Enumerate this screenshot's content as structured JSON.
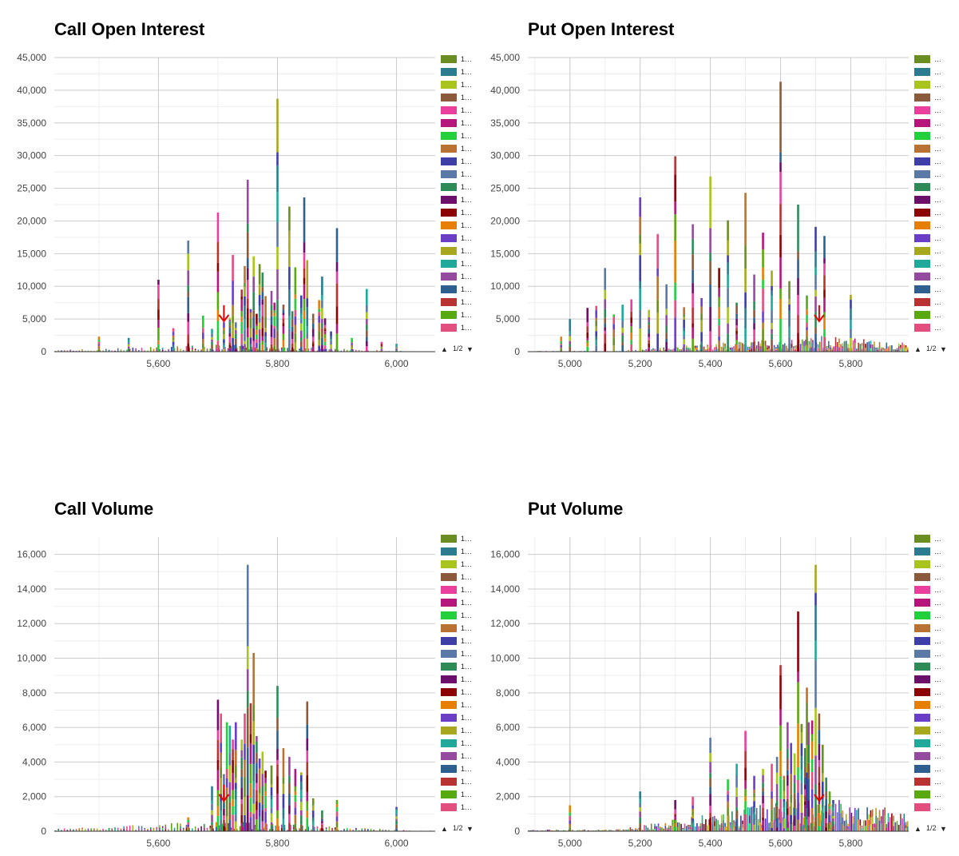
{
  "legend_colors": [
    "#6b8e23",
    "#2c7b8f",
    "#a9c41f",
    "#8b5a3c",
    "#e8409c",
    "#b5167a",
    "#23cf3b",
    "#b87333",
    "#3e3ea8",
    "#5b79a6",
    "#2e8b57",
    "#6b0f6b",
    "#8b0000",
    "#e67e00",
    "#6a3fc6",
    "#a8a820",
    "#20a89a",
    "#944b9e",
    "#2f5f8f",
    "#b83232",
    "#58a80f",
    "#e24e7e"
  ],
  "legend_label_call": "1…",
  "legend_label_put": "…",
  "pager": {
    "up": "▲",
    "text": "1/2",
    "down": "▼"
  },
  "panels": [
    {
      "key": "call-oi",
      "title": "Call Open Interest",
      "legend_label": "1…",
      "marker_x": 5710,
      "chart_data": {
        "type": "bar",
        "stacked": true,
        "title": "Call Open Interest",
        "xlim": [
          5425,
          6065
        ],
        "xticks": [
          5600,
          5800,
          6000
        ],
        "xtick_labels": [
          "5,600",
          "5,800",
          "6,000"
        ],
        "ylim": [
          0,
          45000
        ],
        "yticks": [
          0,
          5000,
          10000,
          15000,
          20000,
          25000,
          30000,
          35000,
          40000,
          45000
        ],
        "ytick_labels": [
          "0",
          "5,000",
          "10,000",
          "15,000",
          "20,000",
          "25,000",
          "30,000",
          "35,000",
          "40,000",
          "45,000"
        ],
        "strikes": [
          5500,
          5550,
          5600,
          5625,
          5650,
          5675,
          5690,
          5700,
          5710,
          5720,
          5725,
          5730,
          5740,
          5745,
          5750,
          5755,
          5760,
          5765,
          5770,
          5775,
          5780,
          5790,
          5795,
          5800,
          5810,
          5820,
          5825,
          5830,
          5840,
          5845,
          5850,
          5860,
          5870,
          5875,
          5880,
          5890,
          5900,
          5925,
          5950,
          5975,
          6000
        ],
        "totals": [
          2300,
          2100,
          11000,
          3600,
          17000,
          5500,
          3500,
          21300,
          4500,
          5200,
          14800,
          4500,
          9500,
          13100,
          26300,
          6500,
          14600,
          5800,
          13400,
          12100,
          8500,
          9300,
          7500,
          38700,
          7200,
          22200,
          6200,
          12900,
          8600,
          23600,
          14000,
          5800,
          7900,
          11500,
          5100,
          3100,
          18900,
          2100,
          9600,
          1500,
          1200
        ],
        "noise_seed": 3,
        "noise_max": 1100
      }
    },
    {
      "key": "put-oi",
      "title": "Put Open Interest",
      "legend_label": "…",
      "marker_x": 5710,
      "chart_data": {
        "type": "bar",
        "stacked": true,
        "title": "Put Open Interest",
        "xlim": [
          4880,
          5965
        ],
        "xticks": [
          5000,
          5200,
          5400,
          5600,
          5800
        ],
        "xtick_labels": [
          "5,000",
          "5,200",
          "5,400",
          "5,600",
          "5,800"
        ],
        "ylim": [
          0,
          45000
        ],
        "yticks": [
          0,
          5000,
          10000,
          15000,
          20000,
          25000,
          30000,
          35000,
          40000,
          45000
        ],
        "ytick_labels": [
          "0",
          "5,000",
          "10,000",
          "15,000",
          "20,000",
          "25,000",
          "30,000",
          "35,000",
          "40,000",
          "45,000"
        ],
        "strikes": [
          4975,
          5000,
          5050,
          5075,
          5100,
          5125,
          5150,
          5175,
          5200,
          5225,
          5250,
          5275,
          5300,
          5325,
          5350,
          5375,
          5400,
          5425,
          5450,
          5475,
          5500,
          5525,
          5550,
          5575,
          5600,
          5625,
          5650,
          5675,
          5700,
          5725,
          5800
        ],
        "totals": [
          2300,
          5000,
          6700,
          7000,
          12800,
          5700,
          7200,
          8000,
          23600,
          6400,
          18000,
          10300,
          29900,
          6800,
          19500,
          8200,
          26800,
          12800,
          20100,
          7500,
          24300,
          11800,
          18200,
          12400,
          41300,
          10800,
          22500,
          8600,
          19100,
          17700,
          8700
        ],
        "noise_seed": 11,
        "noise_max": 2500
      }
    },
    {
      "key": "call-vol",
      "title": "Call Volume",
      "legend_label": "1…",
      "marker_x": 5710,
      "chart_data": {
        "type": "bar",
        "stacked": true,
        "title": "Call Volume",
        "xlim": [
          5425,
          6065
        ],
        "xticks": [
          5600,
          5800,
          6000
        ],
        "xtick_labels": [
          "5,600",
          "5,800",
          "6,000"
        ],
        "ylim": [
          0,
          17000
        ],
        "yticks": [
          0,
          2000,
          4000,
          6000,
          8000,
          10000,
          12000,
          14000,
          16000
        ],
        "ytick_labels": [
          "0",
          "2,000",
          "4,000",
          "6,000",
          "8,000",
          "10,000",
          "12,000",
          "14,000",
          "16,000"
        ],
        "strikes": [
          5650,
          5690,
          5700,
          5705,
          5710,
          5715,
          5720,
          5725,
          5730,
          5740,
          5745,
          5750,
          5755,
          5760,
          5765,
          5770,
          5775,
          5780,
          5790,
          5800,
          5810,
          5820,
          5830,
          5840,
          5850,
          5860,
          5875,
          5900,
          6000
        ],
        "totals": [
          800,
          2600,
          7600,
          6800,
          3300,
          6300,
          6100,
          5300,
          6300,
          5300,
          6800,
          15400,
          7400,
          10300,
          5500,
          4200,
          4600,
          3500,
          3800,
          8400,
          4800,
          4300,
          3600,
          3400,
          7500,
          1900,
          1200,
          1800,
          1400
        ],
        "noise_seed": 7,
        "noise_max": 600
      }
    },
    {
      "key": "put-vol",
      "title": "Put Volume",
      "legend_label": "…",
      "marker_x": 5710,
      "chart_data": {
        "type": "bar",
        "stacked": true,
        "title": "Put Volume",
        "xlim": [
          4880,
          5965
        ],
        "xticks": [
          5000,
          5200,
          5400,
          5600,
          5800
        ],
        "xtick_labels": [
          "5,000",
          "5,200",
          "5,400",
          "5,600",
          "5,800"
        ],
        "ylim": [
          0,
          17000
        ],
        "yticks": [
          0,
          2000,
          4000,
          6000,
          8000,
          10000,
          12000,
          14000,
          16000
        ],
        "ytick_labels": [
          "0",
          "2,000",
          "4,000",
          "6,000",
          "8,000",
          "10,000",
          "12,000",
          "14,000",
          "16,000"
        ],
        "strikes": [
          5000,
          5200,
          5300,
          5350,
          5400,
          5450,
          5475,
          5500,
          5525,
          5550,
          5575,
          5590,
          5600,
          5610,
          5620,
          5630,
          5640,
          5650,
          5660,
          5670,
          5675,
          5680,
          5690,
          5700,
          5710,
          5720,
          5730,
          5740,
          5750
        ],
        "totals": [
          1500,
          2300,
          1800,
          2000,
          5400,
          3000,
          3900,
          5800,
          3200,
          3600,
          3900,
          4300,
          9600,
          3200,
          6300,
          5100,
          4500,
          12700,
          6200,
          4800,
          8300,
          6300,
          6400,
          15400,
          6800,
          5000,
          3100,
          2300,
          1800
        ],
        "noise_seed": 19,
        "noise_max": 2100
      }
    }
  ]
}
